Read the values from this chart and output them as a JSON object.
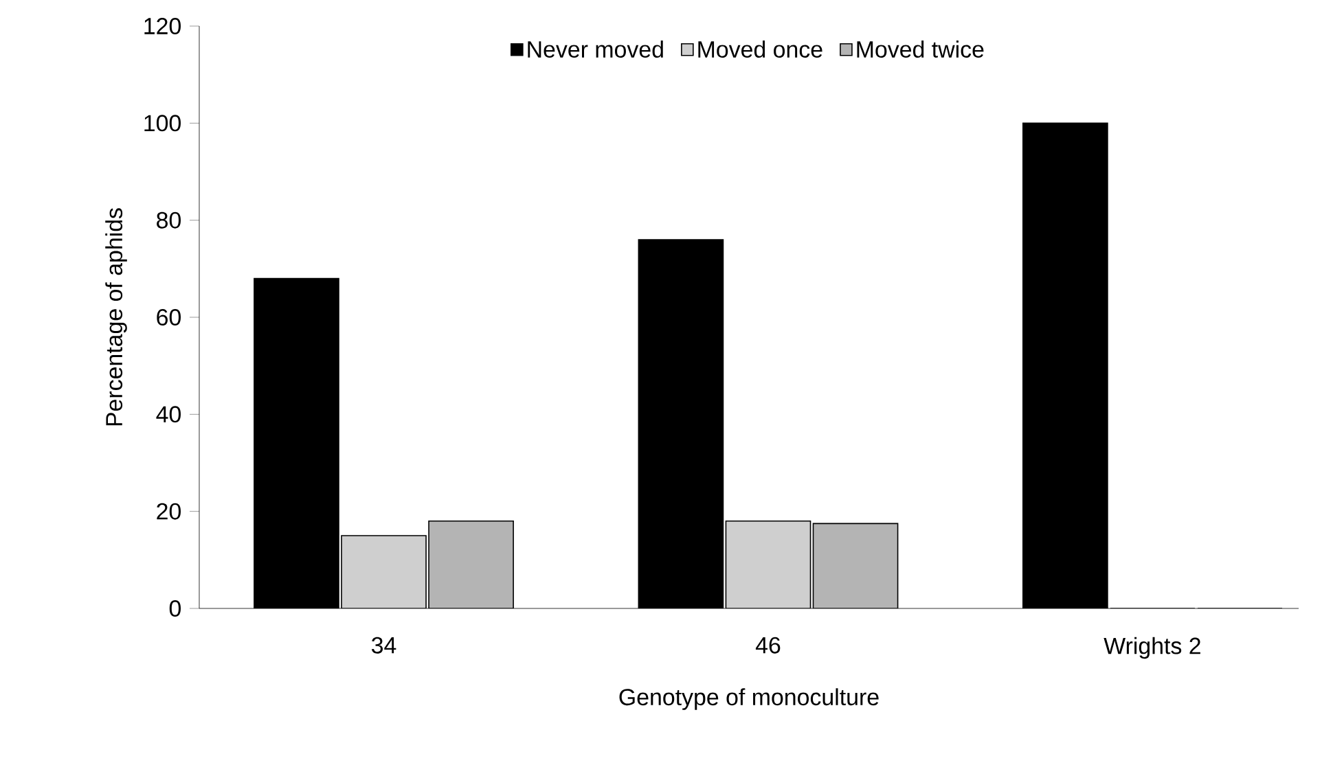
{
  "chart_data": {
    "type": "bar",
    "xlabel": "Genotype of monoculture",
    "ylabel": "Percentage of aphids",
    "categories": [
      "34",
      "46",
      "Wrights 2"
    ],
    "series": [
      {
        "name": "Never moved",
        "color": "#000000",
        "values": [
          68,
          76,
          100
        ]
      },
      {
        "name": "Moved once",
        "color": "#cfcfcf",
        "values": [
          15,
          18,
          0
        ]
      },
      {
        "name": "Moved twice",
        "color": "#b4b4b4",
        "values": [
          18,
          17.5,
          0
        ]
      }
    ],
    "ylim": [
      0,
      120
    ],
    "yticks": [
      0,
      20,
      40,
      60,
      80,
      100,
      120
    ],
    "grid": false,
    "legend": "top"
  }
}
